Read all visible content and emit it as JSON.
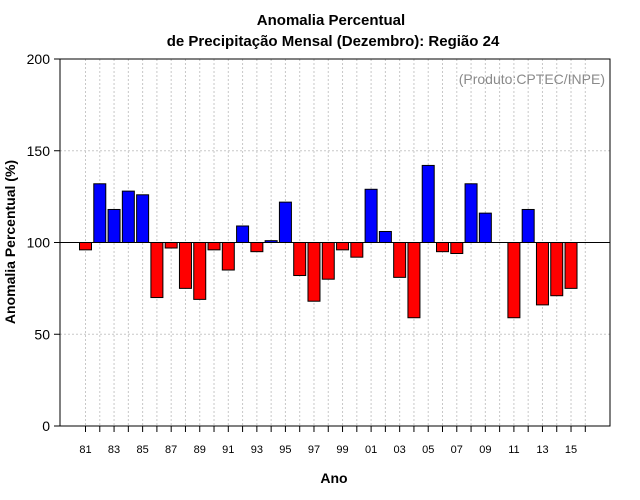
{
  "chart_data": {
    "type": "bar",
    "title": "Anomalia Percentual",
    "subtitle": "de Precipitação Mensal (Dezembro): Região 24",
    "xlabel": "Ano",
    "ylabel": "Anomalia Percentual (%)",
    "annotation": "(Produto:CPTEC/INPE)",
    "ylim": [
      0,
      200
    ],
    "yticks": [
      0,
      50,
      100,
      150,
      200
    ],
    "baseline": 100,
    "grid": true,
    "categories": [
      "81",
      "82",
      "83",
      "84",
      "85",
      "86",
      "87",
      "88",
      "89",
      "90",
      "91",
      "92",
      "93",
      "94",
      "95",
      "96",
      "97",
      "98",
      "99",
      "00",
      "01",
      "02",
      "03",
      "04",
      "05",
      "06",
      "07",
      "08",
      "09",
      "10",
      "11",
      "12",
      "13",
      "14",
      "15",
      "16"
    ],
    "xtick_labels": [
      "81",
      "83",
      "85",
      "87",
      "89",
      "91",
      "93",
      "95",
      "97",
      "99",
      "01",
      "03",
      "05",
      "07",
      "09",
      "11",
      "13",
      "15"
    ],
    "values": [
      96,
      132,
      118,
      128,
      126,
      70,
      97,
      75,
      69,
      96,
      85,
      109,
      95,
      101,
      122,
      82,
      68,
      80,
      96,
      92,
      129,
      106,
      81,
      59,
      142,
      95,
      94,
      132,
      116,
      null,
      59,
      118,
      66,
      71,
      75,
      null
    ],
    "colors": {
      "above": "#0000ff",
      "below": "#ff0000",
      "axis": "#000000",
      "grid": "#c8c8c8",
      "annotation": "#8a8a8a"
    }
  }
}
